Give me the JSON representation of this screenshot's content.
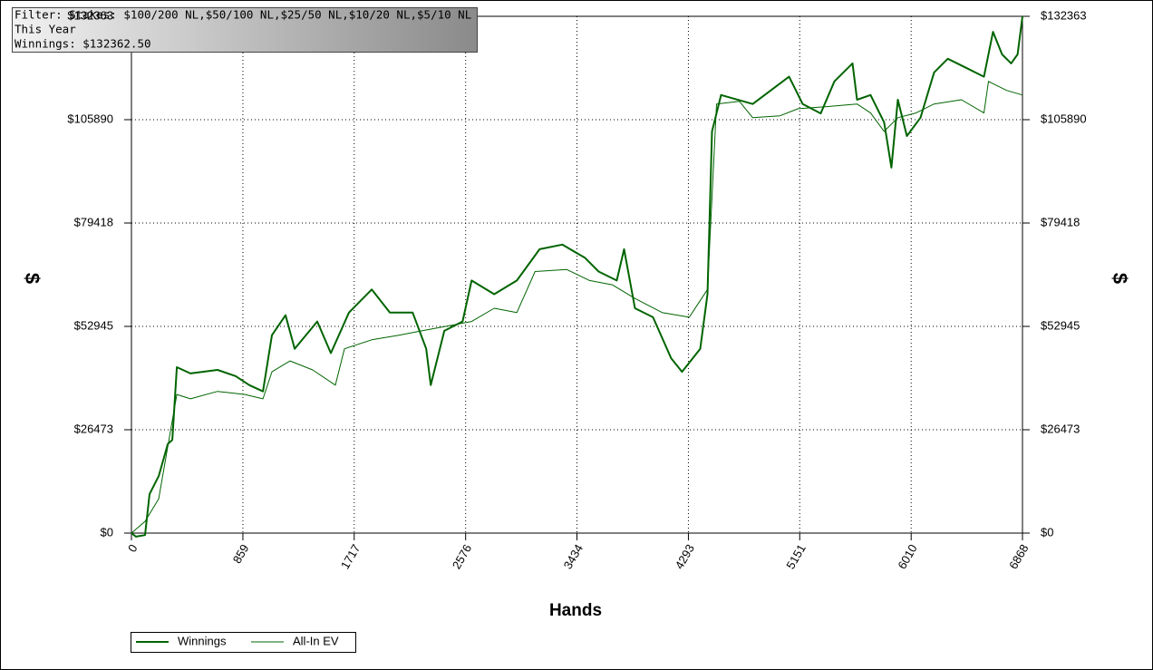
{
  "info": {
    "filter": "Filter: Stakes: $100/200 NL,$50/100 NL,$25/50 NL,$10/20 NL,$5/10 NL",
    "period": "This Year",
    "winnings": "Winnings: $132362.50"
  },
  "chart_data": {
    "type": "line",
    "xlabel": "Hands",
    "ylabel": "$",
    "xlim": [
      0,
      6868
    ],
    "xticks": [
      0,
      859,
      1717,
      2576,
      3434,
      4293,
      5151,
      6010,
      6868
    ],
    "ylim": [
      0,
      132363
    ],
    "yticks": [
      {
        "value": 0,
        "label": "$0"
      },
      {
        "value": 26473,
        "label": "$26473"
      },
      {
        "value": 52945,
        "label": "$52945"
      },
      {
        "value": 79418,
        "label": "$79418"
      },
      {
        "value": 105890,
        "label": "$105890"
      },
      {
        "value": 132363,
        "label": "$132363"
      }
    ],
    "grid": true,
    "series": [
      {
        "name": "Winnings",
        "color": "#006400",
        "width": 2,
        "x": [
          0,
          35,
          105,
          140,
          210,
          280,
          315,
          350,
          455,
          664,
          804,
          909,
          1014,
          1083,
          1188,
          1258,
          1432,
          1537,
          1677,
          1852,
          1992,
          2167,
          2272,
          2307,
          2412,
          2552,
          2622,
          2796,
          2971,
          3146,
          3321,
          3496,
          3601,
          3741,
          3797,
          3881,
          4020,
          4160,
          4244,
          4384,
          4440,
          4475,
          4545,
          4789,
          5069,
          5174,
          5313,
          5418,
          5558,
          5593,
          5697,
          5802,
          5858,
          5907,
          5977,
          6082,
          6187,
          6292,
          6432,
          6571,
          6641,
          6711,
          6781,
          6830,
          6868
        ],
        "values": [
          0,
          -900,
          -500,
          10000,
          14600,
          22800,
          23900,
          42500,
          40900,
          41800,
          40200,
          37900,
          36300,
          50700,
          55800,
          47200,
          54200,
          46100,
          56500,
          62400,
          56500,
          56500,
          47200,
          37900,
          51800,
          54200,
          64700,
          61200,
          64700,
          72700,
          73900,
          70500,
          67000,
          64700,
          72700,
          57600,
          55300,
          44800,
          41300,
          47200,
          61200,
          102900,
          112200,
          109900,
          116900,
          109900,
          107500,
          115700,
          120300,
          111000,
          112200,
          105200,
          93600,
          111000,
          101700,
          106400,
          118000,
          121500,
          119200,
          116900,
          128400,
          122600,
          120300,
          122600,
          132362.5
        ]
      },
      {
        "name": "All-In EV",
        "color": "#006400",
        "width": 1,
        "x": [
          0,
          105,
          210,
          350,
          455,
          664,
          874,
          1014,
          1083,
          1223,
          1397,
          1572,
          1642,
          1852,
          2062,
          2237,
          2412,
          2622,
          2796,
          2971,
          3111,
          3356,
          3531,
          3706,
          3881,
          4090,
          4300,
          4440,
          4510,
          4685,
          4789,
          4999,
          5139,
          5348,
          5593,
          5697,
          5802,
          5907,
          6047,
          6187,
          6397,
          6571,
          6606,
          6746,
          6868
        ],
        "values": [
          0,
          3000,
          8800,
          35500,
          34400,
          36300,
          35500,
          34400,
          41300,
          44100,
          41800,
          37900,
          47200,
          49500,
          50700,
          51800,
          52900,
          54200,
          57600,
          56500,
          67000,
          67500,
          64700,
          63600,
          60100,
          56500,
          55300,
          62400,
          109900,
          110600,
          106400,
          106900,
          108700,
          109200,
          109900,
          107600,
          102900,
          106400,
          107600,
          109900,
          111000,
          107600,
          115700,
          113400,
          112200
        ]
      }
    ]
  }
}
